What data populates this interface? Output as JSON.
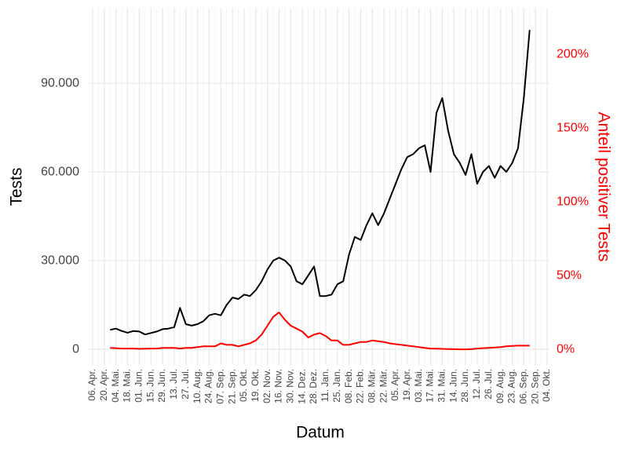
{
  "chart_data": {
    "type": "line",
    "xlabel": "Datum",
    "ylabel": "Tests",
    "y2label": "Anteil positiver Tests",
    "categories": [
      "06. Apr.",
      null,
      "20. Apr.",
      null,
      "04. Mai.",
      null,
      "18. Mai.",
      null,
      "01. Jun.",
      null,
      "15. Jun.",
      null,
      "29. Jun.",
      null,
      "13. Jul.",
      null,
      "27. Jul.",
      null,
      "10. Aug.",
      null,
      "24. Aug.",
      null,
      "07. Sep.",
      null,
      "21. Sep.",
      null,
      "05. Okt.",
      null,
      "19. Okt.",
      null,
      "02. Nov.",
      null,
      "16. Nov.",
      null,
      "30. Nov.",
      null,
      "14. Dez.",
      null,
      "28. Dez.",
      null,
      "11. Jan.",
      null,
      "25. Jan.",
      null,
      "08. Feb.",
      null,
      "22. Feb.",
      null,
      "08. Mär.",
      null,
      "22. Mär.",
      null,
      "05. Apr.",
      null,
      "19. Apr.",
      null,
      "03. Mai.",
      null,
      "17. Mai.",
      null,
      "31. Mai.",
      null,
      "14. Jun.",
      null,
      "28. Jun.",
      null,
      "12. Jul.",
      null,
      "26. Jul.",
      null,
      "09. Aug.",
      null,
      "23. Aug.",
      null,
      "06. Sep.",
      null,
      "20. Sep.",
      null,
      "04. Okt."
    ],
    "series": [
      {
        "color": "#000000",
        "values": [
          null,
          null,
          null,
          6600,
          7000,
          6200,
          5600,
          6200,
          6000,
          5000,
          5500,
          6000,
          6800,
          7000,
          7500,
          14000,
          8500,
          8000,
          8500,
          9500,
          11500,
          12000,
          11500,
          15000,
          17500,
          17000,
          18500,
          18000,
          20000,
          23000,
          27000,
          30000,
          31000,
          30000,
          28000,
          23000,
          22000,
          25000,
          28000,
          18000,
          18000,
          18500,
          22000,
          23000,
          32000,
          38000,
          37000,
          42000,
          46000,
          42000,
          46000,
          51000,
          56000,
          61000,
          65000,
          66000,
          68000,
          69000,
          60000,
          80000,
          85000,
          74000,
          66000,
          63000,
          59000,
          66000,
          56000,
          60000,
          62000,
          58000,
          62000,
          60000,
          63000,
          68000,
          85000,
          108000,
          null,
          null,
          null
        ]
      },
      {
        "color": "#ff0000",
        "axis": "y2",
        "values": [
          null,
          null,
          null,
          1,
          0.8,
          0.5,
          0.5,
          0.5,
          0.3,
          0.4,
          0.5,
          0.5,
          1,
          1,
          1,
          0.5,
          1,
          1,
          1.5,
          2,
          2,
          2,
          4,
          3,
          3,
          2,
          3,
          4,
          6,
          10,
          16,
          22,
          25,
          20,
          16,
          14,
          12,
          8,
          10,
          11,
          9,
          6,
          6,
          3,
          3,
          4,
          5,
          5,
          6,
          5.5,
          5,
          4,
          3.5,
          3,
          2.5,
          2,
          1.5,
          1,
          0.5,
          0.4,
          0.3,
          0.2,
          0.1,
          0,
          0,
          0.1,
          0.5,
          0.8,
          1,
          1.2,
          1.5,
          2,
          2.3,
          2.5,
          2.5,
          2.5,
          null,
          null,
          null
        ]
      }
    ],
    "ylim": [
      -5300,
      115500
    ],
    "yticks": [
      0,
      {
        "value": 30000,
        "label": "30.000"
      },
      {
        "value": 60000,
        "label": "60.000"
      },
      {
        "value": 90000,
        "label": "90.000"
      }
    ],
    "y2lim": [
      -10.6,
      231.4
    ],
    "y2ticks": [
      {
        "value": 0,
        "label": "0%"
      },
      {
        "value": 50,
        "label": "50%"
      },
      {
        "value": 100,
        "label": "100%"
      },
      {
        "value": 150,
        "label": "150%"
      },
      {
        "value": 200,
        "label": "200%"
      }
    ],
    "grid": true
  }
}
